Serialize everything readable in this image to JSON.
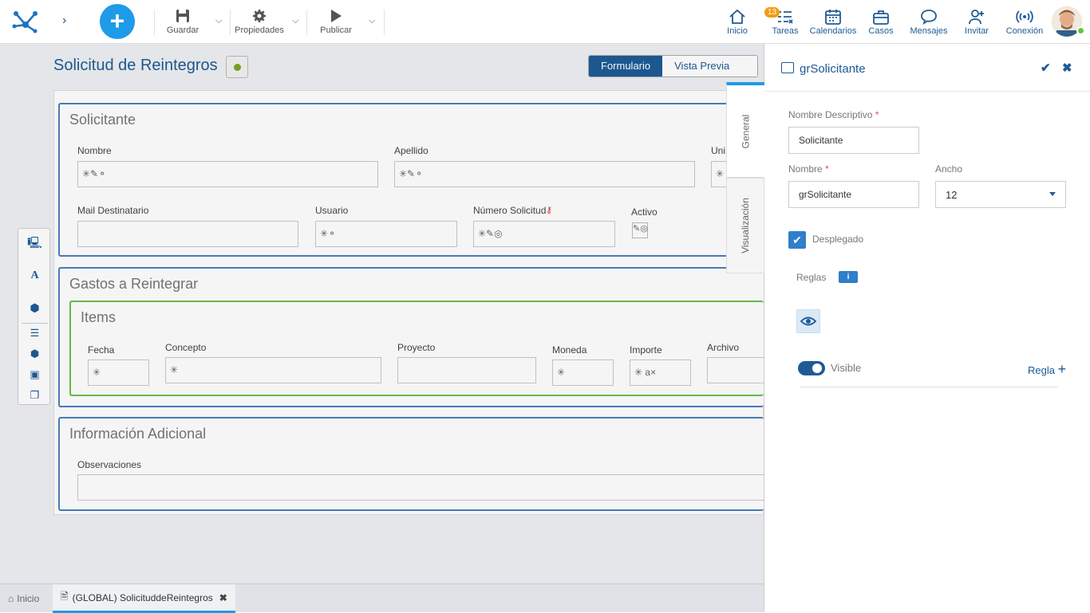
{
  "toolbar": {
    "guardar": "Guardar",
    "propiedades": "Propiedades",
    "publicar": "Publicar"
  },
  "topnav": {
    "inicio": "Inicio",
    "tareas": "Tareas",
    "tareas_count": "13",
    "calendarios": "Calendarios",
    "casos": "Casos",
    "mensajes": "Mensajes",
    "invitar": "Invitar",
    "conexion": "Conexión"
  },
  "form": {
    "title": "Solicitud de Reintegros",
    "tab_formulario": "Formulario",
    "tab_vista_previa": "Vista Previa"
  },
  "groups": {
    "solicitante": {
      "title": "Solicitante",
      "nombre": "Nombre",
      "apellido": "Apellido",
      "unidad": "Uni",
      "mail": "Mail Destinatario",
      "usuario": "Usuario",
      "numero": "Número Solicitud",
      "activo": "Activo"
    },
    "gastos": {
      "title": "Gastos a Reintegrar",
      "items_title": "Items",
      "fecha": "Fecha",
      "concepto": "Concepto",
      "proyecto": "Proyecto",
      "moneda": "Moneda",
      "importe": "Importe",
      "archivo": "Archivo"
    },
    "info": {
      "title": "Información Adicional",
      "observaciones": "Observaciones"
    }
  },
  "panel": {
    "title": "grSolicitante",
    "tab_general": "General",
    "tab_visualizacion": "Visualización",
    "nombre_descriptivo_label": "Nombre Descriptivo",
    "nombre_descriptivo_value": "Solicitante",
    "nombre_label": "Nombre",
    "nombre_value": "grSolicitante",
    "ancho_label": "Ancho",
    "ancho_value": "12",
    "desplegado_label": "Desplegado",
    "reglas_label": "Reglas",
    "visible_label": "Visible",
    "regla_label": "Regla"
  },
  "bottom": {
    "inicio": "Inicio",
    "doc_tab": "(GLOBAL) SolicituddeReintegros"
  }
}
